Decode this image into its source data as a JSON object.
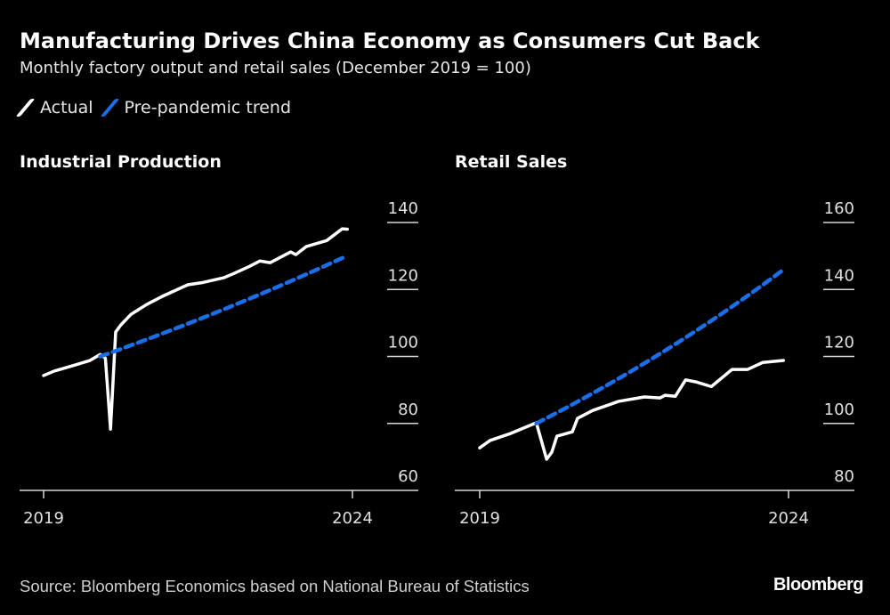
{
  "header": {
    "title": "Manufacturing Drives China Economy as Consumers Cut Back",
    "subtitle": "Monthly factory output and retail sales (December 2019 = 100)"
  },
  "legend": [
    {
      "label": "Actual",
      "color": "#ffffff"
    },
    {
      "label": "Pre-pandemic trend",
      "color": "#1a6fe8"
    }
  ],
  "footer": {
    "source": "Source: Bloomberg Economics based on National Bureau of Statistics",
    "logo": "Bloomberg"
  },
  "chart_data": [
    {
      "type": "line",
      "title": "Industrial Production",
      "ylim": [
        60,
        140
      ],
      "yticks": [
        "140",
        "120",
        "100",
        "80",
        "60"
      ],
      "xticks": [
        "2019",
        "2024"
      ],
      "grid": false,
      "series": [
        {
          "name": "Actual",
          "color": "#ffffff",
          "style": "solid",
          "points": [
            [
              "2019-01",
              94.3
            ],
            [
              "2019-03",
              95.6
            ],
            [
              "2019-07",
              97.4
            ],
            [
              "2019-10",
              98.8
            ],
            [
              "2019-12",
              100.6
            ],
            [
              "2020-01",
              99.5
            ],
            [
              "2020-02",
              78.3
            ],
            [
              "2020-03",
              107.3
            ],
            [
              "2020-04",
              109.4
            ],
            [
              "2020-06",
              112.6
            ],
            [
              "2020-09",
              115.5
            ],
            [
              "2020-12",
              117.9
            ],
            [
              "2021-05",
              121.4
            ],
            [
              "2021-08",
              122.1
            ],
            [
              "2021-12",
              123.5
            ],
            [
              "2022-02",
              124.8
            ],
            [
              "2022-05",
              126.9
            ],
            [
              "2022-07",
              128.5
            ],
            [
              "2022-09",
              128.0
            ],
            [
              "2023-01",
              131.2
            ],
            [
              "2023-02",
              130.4
            ],
            [
              "2023-04",
              132.8
            ],
            [
              "2023-08",
              134.6
            ],
            [
              "2023-11",
              138.1
            ],
            [
              "2023-12",
              138.0
            ]
          ]
        },
        {
          "name": "Pre-pandemic trend",
          "color": "#1a6fe8",
          "style": "dashed",
          "points": [
            [
              "2019-12",
              100
            ],
            [
              "2023-12",
              130.1
            ]
          ]
        }
      ]
    },
    {
      "type": "line",
      "title": "Retail Sales",
      "ylim": [
        80,
        160
      ],
      "yticks": [
        "160",
        "140",
        "120",
        "100",
        "80"
      ],
      "xticks": [
        "2019",
        "2024"
      ],
      "grid": false,
      "series": [
        {
          "name": "Actual",
          "color": "#ffffff",
          "style": "solid",
          "points": [
            [
              "2019-01",
              92.7
            ],
            [
              "2019-03",
              94.9
            ],
            [
              "2019-07",
              97.0
            ],
            [
              "2019-12",
              100.2
            ],
            [
              "2020-02",
              89.3
            ],
            [
              "2020-03",
              91.4
            ],
            [
              "2020-04",
              96.2
            ],
            [
              "2020-07",
              97.5
            ],
            [
              "2020-08",
              101.5
            ],
            [
              "2020-11",
              103.9
            ],
            [
              "2021-02",
              105.5
            ],
            [
              "2021-04",
              106.6
            ],
            [
              "2021-09",
              107.9
            ],
            [
              "2021-12",
              107.6
            ],
            [
              "2022-01",
              108.4
            ],
            [
              "2022-03",
              108.1
            ],
            [
              "2022-05",
              113.0
            ],
            [
              "2022-07",
              112.4
            ],
            [
              "2022-10",
              111.0
            ],
            [
              "2023-02",
              116.1
            ],
            [
              "2023-05",
              116.1
            ],
            [
              "2023-08",
              118.2
            ],
            [
              "2023-12",
              118.8
            ]
          ]
        },
        {
          "name": "Pre-pandemic trend",
          "color": "#1a6fe8",
          "style": "dashed",
          "points": [
            [
              "2019-12",
              100
            ],
            [
              "2023-12",
              145.9
            ]
          ]
        }
      ]
    }
  ]
}
